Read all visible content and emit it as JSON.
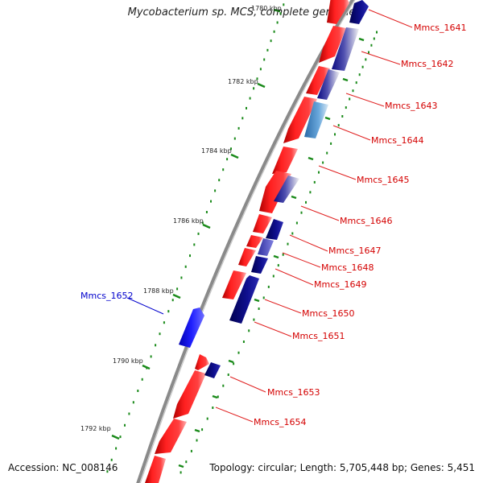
{
  "title": "Mycobacterium sp. MCS, complete genome",
  "footer": {
    "accession": "Accession: NC_008146",
    "topology": "Topology: circular; Length: 5,705,448 bp; Genes: 5,451"
  },
  "colors": {
    "forward_gene": "#ff1a1a",
    "reverse_gene_dark": "#0a0a80",
    "reverse_gene_mid": "#4a4ab8",
    "reverse_gene_light": "#5a9ad0",
    "highlight_gene": "#1a1aff",
    "backbone": "#8a8a8a",
    "tick": "#1a8a1a",
    "label_red": "#d40000",
    "label_blue": "#0000cc"
  },
  "tick_labels": [
    "1780 kbp",
    "1782 kbp",
    "1784 kbp",
    "1786 kbp",
    "1788 kbp",
    "1790 kbp",
    "1792 kbp"
  ],
  "genes": {
    "mmcs_1641": "Mmcs_1641",
    "mmcs_1642": "Mmcs_1642",
    "mmcs_1643": "Mmcs_1643",
    "mmcs_1644": "Mmcs_1644",
    "mmcs_1645": "Mmcs_1645",
    "mmcs_1646": "Mmcs_1646",
    "mmcs_1647": "Mmcs_1647",
    "mmcs_1648": "Mmcs_1648",
    "mmcs_1649": "Mmcs_1649",
    "mmcs_1650": "Mmcs_1650",
    "mmcs_1651": "Mmcs_1651",
    "mmcs_1652": "Mmcs_1652",
    "mmcs_1653": "Mmcs_1653",
    "mmcs_1654": "Mmcs_1654"
  }
}
